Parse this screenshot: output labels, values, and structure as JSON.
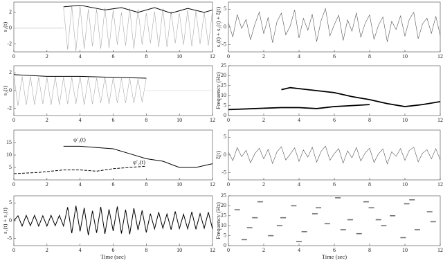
{
  "chart_data": [
    {
      "type": "line",
      "ylabel": "s₁(t)",
      "xlim": [
        0,
        12
      ],
      "xticks": [
        0,
        2,
        4,
        6,
        8,
        10,
        12
      ],
      "ylim": [
        -3,
        3.3
      ],
      "yticks": [
        -2,
        0,
        2
      ],
      "series": [
        {
          "color": "#aaaaaa",
          "x": [
            0,
            3
          ],
          "values": [
            0,
            0
          ]
        },
        {
          "color": "#aaaaaa",
          "x": [
            3,
            3.25,
            3.5,
            3.75,
            4,
            4.25,
            4.5,
            4.75,
            5,
            5.25,
            5.5,
            5.75,
            6,
            6.25,
            6.5,
            6.75,
            7,
            7.25,
            7.5,
            7.75,
            8,
            8.25,
            8.5,
            8.75,
            9,
            9.25,
            9.5,
            9.75,
            10,
            10.25,
            10.5,
            10.75,
            11,
            11.25,
            11.5,
            11.75,
            12
          ],
          "values": [
            2.6,
            -2.7,
            2.8,
            -2.9,
            2.8,
            -2.6,
            2.4,
            -2.3,
            2.4,
            -2.6,
            2.6,
            -2.5,
            2.3,
            -2.1,
            2.0,
            -2.2,
            2.5,
            -2.6,
            2.4,
            -2.1,
            1.9,
            -1.9,
            2.1,
            -2.4,
            2.5,
            -2.4,
            2.1,
            -1.9,
            1.9,
            -2.1,
            2.3,
            -2.3,
            2.2,
            -2.0,
            2.0,
            -2.2,
            2.3
          ]
        },
        {
          "color": "#000000",
          "x": [
            3,
            4,
            5.5,
            6.5,
            7.5,
            8.5,
            9.5,
            10.5,
            11.5,
            12
          ],
          "values": [
            2.7,
            2.9,
            2.3,
            2.6,
            2.0,
            2.6,
            1.9,
            2.5,
            2.0,
            2.3
          ]
        }
      ]
    },
    {
      "type": "line",
      "ylabel": "s₂(t)",
      "xlim": [
        0,
        12
      ],
      "xticks": [
        0,
        2,
        4,
        6,
        8,
        10,
        12
      ],
      "ylim": [
        -2.8,
        2.8
      ],
      "yticks": [
        -2,
        0,
        2
      ],
      "series": [
        {
          "color": "#aaaaaa",
          "x": [
            0,
            0.25,
            0.5,
            0.75,
            1,
            1.25,
            1.5,
            1.75,
            2,
            2.25,
            2.5,
            2.75,
            3,
            3.25,
            3.5,
            3.75,
            4,
            4.25,
            4.5,
            4.75,
            5,
            5.25,
            5.5,
            5.75,
            6,
            6.25,
            6.5,
            6.75,
            7,
            7.25,
            7.5,
            7.75,
            8
          ],
          "values": [
            1.7,
            -1.7,
            1.6,
            -1.6,
            1.6,
            -1.6,
            1.5,
            -1.5,
            1.5,
            -1.6,
            1.6,
            -1.6,
            1.5,
            -1.5,
            1.5,
            -1.5,
            1.6,
            -1.6,
            1.5,
            -1.5,
            1.4,
            -1.4,
            1.5,
            -1.5,
            1.5,
            -1.4,
            1.4,
            -1.4,
            1.4,
            -1.4,
            1.3,
            -1.3,
            1.4
          ]
        },
        {
          "color": "#cccccc",
          "x": [
            8,
            12
          ],
          "values": [
            0,
            0
          ]
        },
        {
          "color": "#000000",
          "x": [
            0,
            2,
            4,
            6,
            8
          ],
          "values": [
            1.8,
            1.6,
            1.6,
            1.5,
            1.4
          ]
        }
      ]
    },
    {
      "type": "line",
      "xlim": [
        0,
        12
      ],
      "xticks": [
        0,
        2,
        4,
        6,
        8,
        10,
        12
      ],
      "ylim": [
        0,
        20
      ],
      "yticks": [
        5,
        10,
        15
      ],
      "annotations": [
        "φ′₁(t)",
        "φ′₂(t)"
      ],
      "series": [
        {
          "color": "#000000",
          "x": [
            3,
            4,
            5,
            6,
            7,
            8,
            9,
            10,
            11,
            12
          ],
          "values": [
            13.5,
            13.5,
            13,
            12.5,
            10.5,
            8.5,
            7.5,
            5,
            5,
            6.5
          ]
        },
        {
          "color": "#000000",
          "dash": true,
          "x": [
            0,
            1.5,
            3,
            4,
            5,
            6,
            7,
            8
          ],
          "values": [
            2.5,
            3,
            4,
            4,
            3.5,
            4.5,
            5,
            5.5
          ]
        }
      ]
    },
    {
      "type": "line",
      "ylabel": "s₁(t) + s₂(t)",
      "xlabel": "Time (sec)",
      "xlim": [
        0,
        12
      ],
      "xticks": [
        0,
        2,
        4,
        6,
        8,
        10,
        12
      ],
      "ylim": [
        -7,
        7
      ],
      "yticks": [
        -5,
        0,
        5
      ],
      "series": [
        {
          "color": "#000000",
          "x": [
            0,
            0.25,
            0.5,
            0.75,
            1,
            1.25,
            1.5,
            1.75,
            2,
            2.25,
            2.5,
            2.75,
            3,
            3.25,
            3.5,
            3.75,
            4,
            4.25,
            4.5,
            4.75,
            5,
            5.25,
            5.5,
            5.75,
            6,
            6.25,
            6.5,
            6.75,
            7,
            7.25,
            7.5,
            7.75,
            8,
            8.25,
            8.5,
            8.75,
            9,
            9.25,
            9.5,
            9.75,
            10,
            10.25,
            10.5,
            10.75,
            11,
            11.25,
            11.5,
            11.75,
            12
          ],
          "values": [
            0,
            1.4,
            -1.5,
            1.5,
            -1.4,
            1.5,
            -1.5,
            1.4,
            -1.5,
            1.5,
            -1.4,
            1.5,
            -1.5,
            3.8,
            -3.5,
            4.2,
            -3.0,
            3.6,
            -4.1,
            2.8,
            -3.4,
            3.9,
            -3.7,
            3.2,
            -2.9,
            4.0,
            -3.6,
            3.1,
            -3.8,
            3.5,
            -2.6,
            2.9,
            -3.3,
            2.0,
            -2.3,
            2.4,
            -2.1,
            1.9,
            -2.5,
            2.6,
            -2.2,
            1.8,
            -2.3,
            2.5,
            -2.4,
            2.0,
            -2.1,
            2.4,
            -2.3
          ]
        }
      ]
    },
    {
      "type": "line",
      "ylabel": "s₁(t) + s₂(t) + ξ(t)",
      "xlim": [
        0,
        12
      ],
      "xticks": [
        0,
        2,
        4,
        6,
        8,
        10,
        12
      ],
      "ylim": [
        -7,
        7
      ],
      "yticks": [
        -5,
        0,
        5
      ],
      "series": [
        {
          "color": "#555555",
          "x": [
            0,
            0.25,
            0.5,
            0.75,
            1,
            1.25,
            1.5,
            1.75,
            2,
            2.25,
            2.5,
            2.75,
            3,
            3.25,
            3.5,
            3.75,
            4,
            4.25,
            4.5,
            4.75,
            5,
            5.25,
            5.5,
            5.75,
            6,
            6.25,
            6.5,
            6.75,
            7,
            7.25,
            7.5,
            7.75,
            8,
            8.25,
            8.5,
            8.75,
            9,
            9.25,
            9.5,
            9.75,
            10,
            10.25,
            10.5,
            10.75,
            11,
            11.25,
            11.5,
            11.75,
            12
          ],
          "values": [
            1.2,
            -2.8,
            3.5,
            -0.4,
            2.1,
            -3.6,
            0.8,
            4.2,
            -1.9,
            2.7,
            -4.4,
            1.5,
            3.9,
            -2.2,
            0.3,
            4.8,
            -3.1,
            2.4,
            -0.9,
            3.6,
            -4.1,
            1.8,
            5.2,
            -2.5,
            0.7,
            3.3,
            -3.8,
            2.0,
            -1.2,
            4.0,
            -2.9,
            1.1,
            3.4,
            -3.5,
            0.5,
            2.8,
            -4.2,
            1.6,
            -0.7,
            3.1,
            -2.6,
            2.2,
            4.1,
            -3.3,
            0.9,
            2.5,
            -1.8,
            3.0,
            -2.4
          ]
        }
      ]
    },
    {
      "type": "line",
      "ylabel": "Frequency (Hz)",
      "xlim": [
        0,
        12
      ],
      "xticks": [
        0,
        2,
        4,
        6,
        8,
        10,
        12
      ],
      "ylim": [
        0,
        25
      ],
      "yticks": [
        0,
        5,
        10,
        15,
        20,
        25
      ],
      "series": [
        {
          "color": "#000000",
          "x": [
            3,
            3.5,
            4,
            5,
            6,
            7,
            8,
            9,
            10,
            11,
            12
          ],
          "values": [
            13,
            14,
            13.5,
            12.5,
            11.5,
            9.5,
            8,
            6,
            4.5,
            5.5,
            7
          ]
        },
        {
          "color": "#000000",
          "x": [
            0,
            1.5,
            3,
            4,
            5,
            6,
            7,
            8
          ],
          "values": [
            3,
            3.5,
            4,
            4,
            3.5,
            4.5,
            5,
            5.5
          ]
        }
      ]
    },
    {
      "type": "line",
      "ylabel": "ξ(t)",
      "xlim": [
        0,
        12
      ],
      "xticks": [
        0,
        2,
        4,
        6,
        8,
        10,
        12
      ],
      "ylim": [
        -7,
        7
      ],
      "yticks": [
        -5,
        0,
        5
      ],
      "series": [
        {
          "color": "#555555",
          "x": [
            0,
            0.25,
            0.5,
            0.75,
            1,
            1.25,
            1.5,
            1.75,
            2,
            2.25,
            2.5,
            2.75,
            3,
            3.25,
            3.5,
            3.75,
            4,
            4.25,
            4.5,
            4.75,
            5,
            5.25,
            5.5,
            5.75,
            6,
            6.25,
            6.5,
            6.75,
            7,
            7.25,
            7.5,
            7.75,
            8,
            8.25,
            8.5,
            8.75,
            9,
            9.25,
            9.5,
            9.75,
            10,
            10.25,
            10.5,
            10.75,
            11,
            11.25,
            11.5,
            11.75,
            12
          ],
          "values": [
            0.8,
            -1.6,
            2.1,
            -0.5,
            1.3,
            -2.2,
            0.4,
            1.9,
            -1.1,
            1.6,
            -2.4,
            0.9,
            2.3,
            -1.4,
            0.2,
            2.0,
            -1.8,
            1.4,
            -0.6,
            2.2,
            -2.0,
            1.0,
            2.5,
            -1.5,
            0.4,
            1.8,
            -2.3,
            1.2,
            -0.8,
            2.1,
            -1.7,
            0.6,
            1.9,
            -2.1,
            0.3,
            1.7,
            -2.5,
            0.9,
            -0.4,
            1.8,
            -1.5,
            1.3,
            2.2,
            -1.9,
            0.5,
            1.5,
            -1.1,
            1.8,
            -1.4
          ]
        }
      ]
    },
    {
      "type": "scatter",
      "ylabel": "Frequency (Hz)",
      "xlabel": "Time (sec)",
      "xlim": [
        0,
        12
      ],
      "xticks": [
        0,
        2,
        4,
        6,
        8,
        10,
        12
      ],
      "ylim": [
        0,
        25
      ],
      "yticks": [
        0,
        5,
        10,
        15,
        20,
        25
      ],
      "series": [
        {
          "color": "#333333",
          "x": [
            0.5,
            1.2,
            1.8,
            2.4,
            3.1,
            3.7,
            4.3,
            4.9,
            5.6,
            6.2,
            6.9,
            7.4,
            8.1,
            8.8,
            9.3,
            10.1,
            10.7,
            11.4,
            0.9,
            2.9,
            5.1,
            7.8,
            9.9,
            11.6,
            1.5,
            4.0,
            6.5,
            8.5,
            10.4
          ],
          "values": [
            18,
            9,
            22,
            5,
            14,
            20,
            7,
            16,
            11,
            24,
            13,
            6,
            19,
            10,
            15,
            21,
            8,
            17,
            3,
            10,
            19,
            22,
            4,
            12,
            14,
            2,
            8,
            13,
            23
          ]
        }
      ]
    }
  ]
}
